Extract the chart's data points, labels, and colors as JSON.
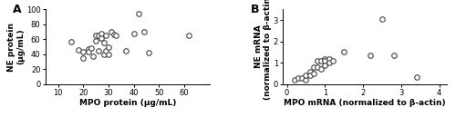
{
  "panel_A": {
    "label": "A",
    "x": [
      15,
      18,
      20,
      20,
      22,
      22,
      23,
      24,
      25,
      25,
      26,
      26,
      27,
      27,
      28,
      28,
      29,
      29,
      30,
      30,
      31,
      32,
      33,
      37,
      40,
      42,
      44,
      46,
      62
    ],
    "y": [
      57,
      46,
      44,
      35,
      47,
      43,
      48,
      37,
      65,
      58,
      65,
      45,
      68,
      62,
      55,
      40,
      65,
      45,
      50,
      40,
      70,
      67,
      65,
      45,
      68,
      94,
      70,
      42,
      65
    ],
    "xlabel": "MPO protein (μg/mL)",
    "ylabel": "NE protein\n(μg/mL)",
    "xlim": [
      5,
      70
    ],
    "ylim": [
      0,
      100
    ],
    "xticks": [
      10,
      20,
      30,
      40,
      50,
      60
    ],
    "yticks": [
      0,
      20,
      40,
      60,
      80,
      100
    ]
  },
  "panel_B": {
    "label": "B",
    "x": [
      0.2,
      0.3,
      0.4,
      0.5,
      0.5,
      0.6,
      0.6,
      0.7,
      0.7,
      0.8,
      0.8,
      0.9,
      0.9,
      1.0,
      1.0,
      1.0,
      1.1,
      1.1,
      1.2,
      1.5,
      2.2,
      2.5,
      2.8,
      3.4
    ],
    "y": [
      0.2,
      0.3,
      0.3,
      0.2,
      0.4,
      0.6,
      0.4,
      0.8,
      0.5,
      1.1,
      0.8,
      1.1,
      0.7,
      1.2,
      1.1,
      0.9,
      1.2,
      1.0,
      1.1,
      1.5,
      1.35,
      3.05,
      1.35,
      0.35
    ],
    "xlabel": "MPO mRNA (normalized to β-actin)",
    "ylabel": "NE mRNA\n(normalized to β-actin)",
    "xlim": [
      -0.1,
      4.2
    ],
    "ylim": [
      0,
      3.5
    ],
    "xticks": [
      0,
      1,
      2,
      3,
      4
    ],
    "yticks": [
      0,
      1,
      2,
      3
    ]
  },
  "marker_size": 16,
  "marker_color": "white",
  "marker_edgecolor": "#444444",
  "marker_linewidth": 0.8,
  "tick_fontsize": 6,
  "label_fontsize": 6.5,
  "panel_label_fontsize": 9,
  "spine_linewidth": 0.7
}
